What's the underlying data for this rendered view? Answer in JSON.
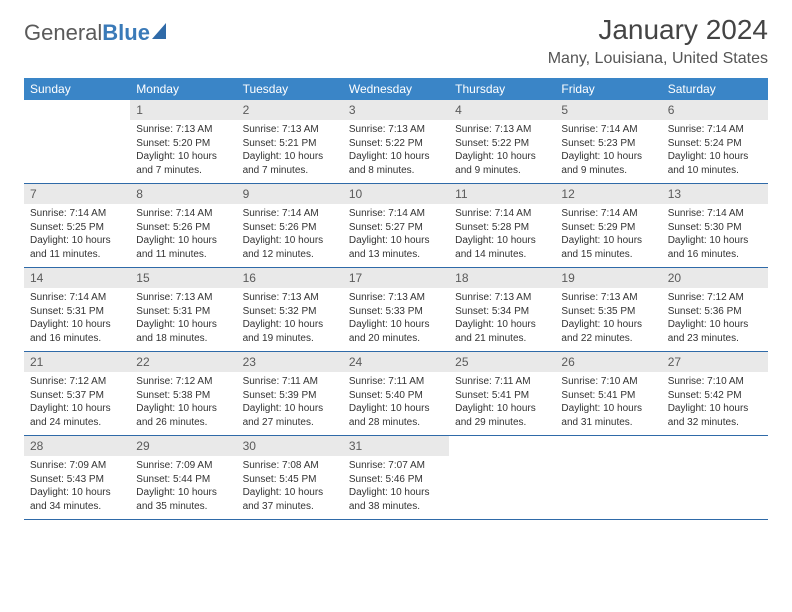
{
  "logo": {
    "text_gray": "General",
    "text_blue": "Blue"
  },
  "header": {
    "month_title": "January 2024",
    "location": "Many, Louisiana, United States"
  },
  "colors": {
    "header_bg": "#3a85c7",
    "header_text": "#ffffff",
    "daynum_bg": "#e9e9e9",
    "daynum_text": "#5a5a5a",
    "body_text": "#333333",
    "week_border": "#2f6aa8",
    "logo_gray": "#5a5a5a",
    "logo_blue": "#3a7ab8",
    "background": "#ffffff"
  },
  "typography": {
    "month_title_fontsize": 28,
    "location_fontsize": 16,
    "day_header_fontsize": 12,
    "daynum_fontsize": 12,
    "details_fontsize": 10,
    "font_family": "Arial"
  },
  "calendar": {
    "day_names": [
      "Sunday",
      "Monday",
      "Tuesday",
      "Wednesday",
      "Thursday",
      "Friday",
      "Saturday"
    ],
    "first_weekday_index": 1,
    "days_in_month": 31,
    "days": [
      {
        "n": 1,
        "sunrise": "7:13 AM",
        "sunset": "5:20 PM",
        "daylight": "10 hours and 7 minutes."
      },
      {
        "n": 2,
        "sunrise": "7:13 AM",
        "sunset": "5:21 PM",
        "daylight": "10 hours and 7 minutes."
      },
      {
        "n": 3,
        "sunrise": "7:13 AM",
        "sunset": "5:22 PM",
        "daylight": "10 hours and 8 minutes."
      },
      {
        "n": 4,
        "sunrise": "7:13 AM",
        "sunset": "5:22 PM",
        "daylight": "10 hours and 9 minutes."
      },
      {
        "n": 5,
        "sunrise": "7:14 AM",
        "sunset": "5:23 PM",
        "daylight": "10 hours and 9 minutes."
      },
      {
        "n": 6,
        "sunrise": "7:14 AM",
        "sunset": "5:24 PM",
        "daylight": "10 hours and 10 minutes."
      },
      {
        "n": 7,
        "sunrise": "7:14 AM",
        "sunset": "5:25 PM",
        "daylight": "10 hours and 11 minutes."
      },
      {
        "n": 8,
        "sunrise": "7:14 AM",
        "sunset": "5:26 PM",
        "daylight": "10 hours and 11 minutes."
      },
      {
        "n": 9,
        "sunrise": "7:14 AM",
        "sunset": "5:26 PM",
        "daylight": "10 hours and 12 minutes."
      },
      {
        "n": 10,
        "sunrise": "7:14 AM",
        "sunset": "5:27 PM",
        "daylight": "10 hours and 13 minutes."
      },
      {
        "n": 11,
        "sunrise": "7:14 AM",
        "sunset": "5:28 PM",
        "daylight": "10 hours and 14 minutes."
      },
      {
        "n": 12,
        "sunrise": "7:14 AM",
        "sunset": "5:29 PM",
        "daylight": "10 hours and 15 minutes."
      },
      {
        "n": 13,
        "sunrise": "7:14 AM",
        "sunset": "5:30 PM",
        "daylight": "10 hours and 16 minutes."
      },
      {
        "n": 14,
        "sunrise": "7:14 AM",
        "sunset": "5:31 PM",
        "daylight": "10 hours and 16 minutes."
      },
      {
        "n": 15,
        "sunrise": "7:13 AM",
        "sunset": "5:31 PM",
        "daylight": "10 hours and 18 minutes."
      },
      {
        "n": 16,
        "sunrise": "7:13 AM",
        "sunset": "5:32 PM",
        "daylight": "10 hours and 19 minutes."
      },
      {
        "n": 17,
        "sunrise": "7:13 AM",
        "sunset": "5:33 PM",
        "daylight": "10 hours and 20 minutes."
      },
      {
        "n": 18,
        "sunrise": "7:13 AM",
        "sunset": "5:34 PM",
        "daylight": "10 hours and 21 minutes."
      },
      {
        "n": 19,
        "sunrise": "7:13 AM",
        "sunset": "5:35 PM",
        "daylight": "10 hours and 22 minutes."
      },
      {
        "n": 20,
        "sunrise": "7:12 AM",
        "sunset": "5:36 PM",
        "daylight": "10 hours and 23 minutes."
      },
      {
        "n": 21,
        "sunrise": "7:12 AM",
        "sunset": "5:37 PM",
        "daylight": "10 hours and 24 minutes."
      },
      {
        "n": 22,
        "sunrise": "7:12 AM",
        "sunset": "5:38 PM",
        "daylight": "10 hours and 26 minutes."
      },
      {
        "n": 23,
        "sunrise": "7:11 AM",
        "sunset": "5:39 PM",
        "daylight": "10 hours and 27 minutes."
      },
      {
        "n": 24,
        "sunrise": "7:11 AM",
        "sunset": "5:40 PM",
        "daylight": "10 hours and 28 minutes."
      },
      {
        "n": 25,
        "sunrise": "7:11 AM",
        "sunset": "5:41 PM",
        "daylight": "10 hours and 29 minutes."
      },
      {
        "n": 26,
        "sunrise": "7:10 AM",
        "sunset": "5:41 PM",
        "daylight": "10 hours and 31 minutes."
      },
      {
        "n": 27,
        "sunrise": "7:10 AM",
        "sunset": "5:42 PM",
        "daylight": "10 hours and 32 minutes."
      },
      {
        "n": 28,
        "sunrise": "7:09 AM",
        "sunset": "5:43 PM",
        "daylight": "10 hours and 34 minutes."
      },
      {
        "n": 29,
        "sunrise": "7:09 AM",
        "sunset": "5:44 PM",
        "daylight": "10 hours and 35 minutes."
      },
      {
        "n": 30,
        "sunrise": "7:08 AM",
        "sunset": "5:45 PM",
        "daylight": "10 hours and 37 minutes."
      },
      {
        "n": 31,
        "sunrise": "7:07 AM",
        "sunset": "5:46 PM",
        "daylight": "10 hours and 38 minutes."
      }
    ],
    "labels": {
      "sunrise": "Sunrise:",
      "sunset": "Sunset:",
      "daylight": "Daylight:"
    }
  }
}
